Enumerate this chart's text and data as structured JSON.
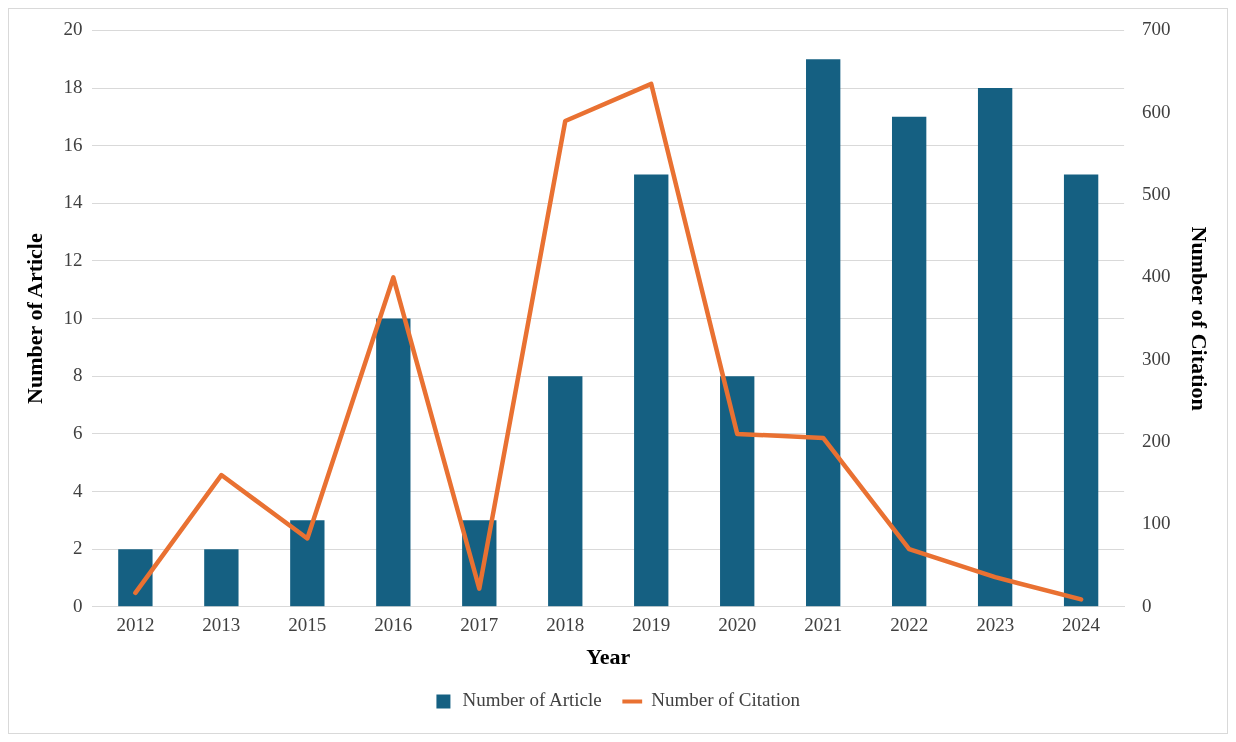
{
  "chart_data": {
    "type": "bar",
    "xlabel": "Year",
    "ylabel": "Number of Article",
    "y2label": "Number of Citation",
    "categories": [
      "2012",
      "2013",
      "2015",
      "2016",
      "2017",
      "2018",
      "2019",
      "2020",
      "2021",
      "2022",
      "2023",
      "2024"
    ],
    "series": [
      {
        "name": "Number of Article",
        "color": "#156082",
        "values": [
          2,
          2,
          3,
          10,
          3,
          8,
          15,
          8,
          19,
          17,
          18,
          15
        ]
      },
      {
        "name": "Number of Citation",
        "type": "line",
        "axis": "y2",
        "color": "#e97132",
        "values": [
          17,
          160,
          83,
          400,
          22,
          590,
          635,
          210,
          205,
          70,
          36,
          9
        ]
      }
    ],
    "ylim": [
      0,
      20
    ],
    "yticks": [
      0,
      2,
      4,
      6,
      8,
      10,
      12,
      14,
      16,
      18,
      20
    ],
    "y2lim": [
      0,
      700
    ],
    "y2ticks": [
      0,
      100,
      200,
      300,
      400,
      500,
      600,
      700
    ],
    "grid": "y",
    "legend": "bottom",
    "marker": "none"
  }
}
